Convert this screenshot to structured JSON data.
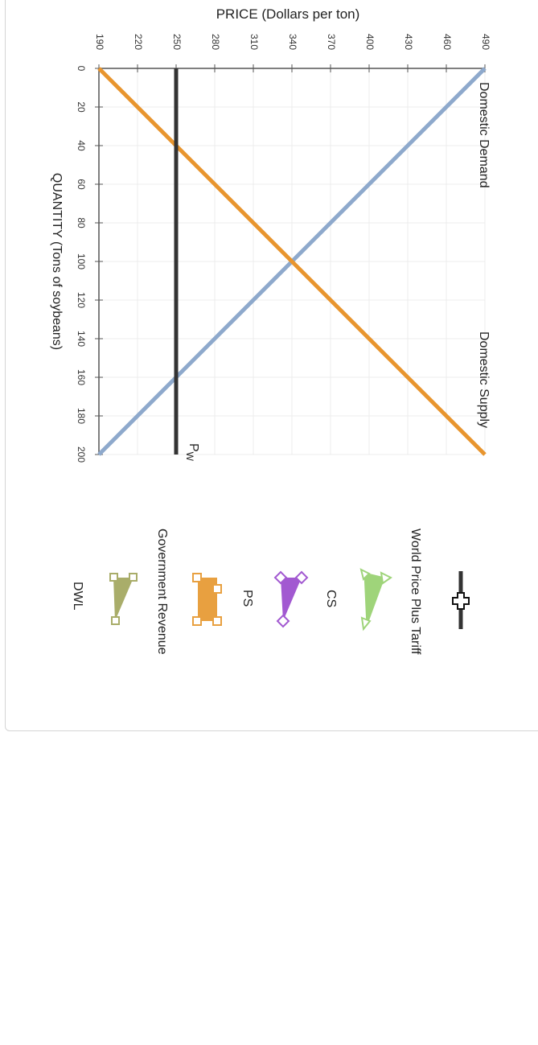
{
  "chart_data": {
    "type": "line",
    "ylabel": "PRICE (Dollars per ton)",
    "xlabel": "QUANTITY (Tons of soybeans)",
    "xlim": [
      0,
      200
    ],
    "ylim": [
      190,
      490
    ],
    "x_ticks": [
      "0",
      "20",
      "40",
      "60",
      "80",
      "100",
      "120",
      "140",
      "160",
      "180",
      "200"
    ],
    "y_ticks": [
      "190",
      "220",
      "250",
      "280",
      "310",
      "340",
      "370",
      "400",
      "430",
      "460",
      "490"
    ],
    "grid": true,
    "series": [
      {
        "name": "Domestic Demand",
        "color": "#8ea9cc",
        "points": [
          [
            0,
            490
          ],
          [
            200,
            190
          ]
        ]
      },
      {
        "name": "Domestic Supply",
        "color": "#e8952e",
        "points": [
          [
            0,
            190
          ],
          [
            200,
            490
          ]
        ]
      },
      {
        "name": "P",
        "name_sub": "W",
        "color": "#333333",
        "points": [
          [
            0,
            250
          ],
          [
            200,
            250
          ]
        ]
      }
    ]
  },
  "legend": {
    "title": "",
    "items": [
      {
        "label": "World Price Plus Tariff",
        "icon": "black-line-plus-icon",
        "color": "#333333"
      },
      {
        "label": "CS",
        "icon": "green-triangle-icon",
        "color": "#9fd47a"
      },
      {
        "label": "PS",
        "icon": "purple-triangle-icon",
        "color": "#a259d1"
      },
      {
        "label": "Government Revenue",
        "icon": "orange-rectangle-icon",
        "color": "#e8a040"
      },
      {
        "label": "DWL",
        "icon": "olive-triangle-icon",
        "color": "#a9ad6a"
      }
    ]
  }
}
